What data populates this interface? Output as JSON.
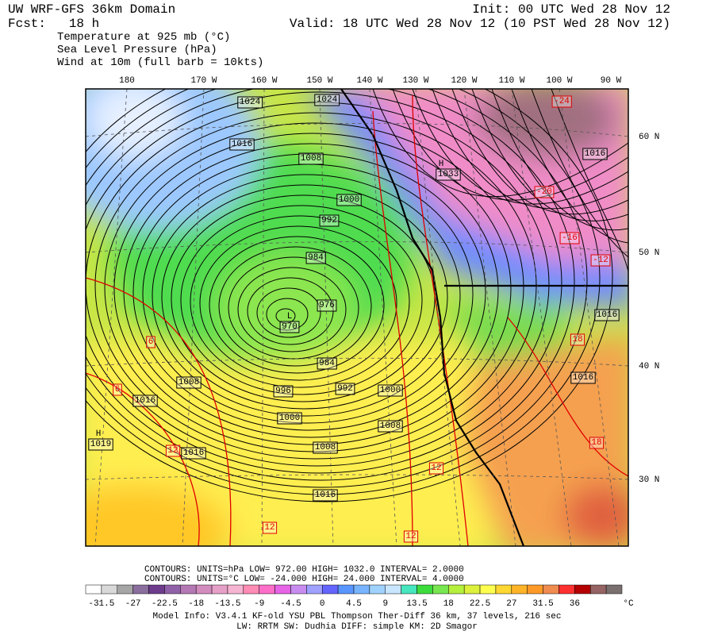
{
  "header": {
    "title": "UW WRF-GFS 36km Domain",
    "init": "Init: 00 UTC Wed 28 Nov 12",
    "fcst": "Fcst:   18 h",
    "valid": "Valid: 18 UTC Wed 28 Nov 12 (10 PST Wed 28 Nov 12)",
    "fields": [
      "Temperature at 925 mb (°C)",
      "Sea Level Pressure (hPa)",
      "Wind at 10m (full barb = 10kts)"
    ]
  },
  "longitude_labels": [
    "180",
    "170 W",
    "160 W",
    "150 W",
    "140 W",
    "130 W",
    "120 W",
    "110 W",
    "100 W",
    "90 W"
  ],
  "latitude_labels": [
    "60 N",
    "50 N",
    "40 N",
    "30 N"
  ],
  "pressure_labels": [
    "1024",
    "1024",
    "1016",
    "1008",
    "1000",
    "992",
    "984",
    "976",
    "970",
    "984",
    "992",
    "996",
    "1000",
    "1008",
    "1016",
    "1000",
    "1008",
    "1008",
    "1016",
    "1016",
    "1019",
    "1033",
    "1016",
    "1016",
    "1016"
  ],
  "centers": [
    "L",
    "H",
    "H"
  ],
  "temperature_labels": [
    "-20",
    "-24",
    "-16",
    "-12",
    "12",
    "12",
    "18",
    "12",
    "12",
    "6",
    "6",
    "18"
  ],
  "contour_info": [
    "CONTOURS:  UNITS=hPa  LOW=   972.00      HIGH=  1032.0      INTERVAL=   2.0000",
    "CONTOURS:  UNITS=°C  LOW= -24.000     HIGH=  24.000      INTERVAL=   4.0000"
  ],
  "colorbar": {
    "colors": [
      "#ffffff",
      "#d9d9d9",
      "#a6a6a6",
      "#8a6e9e",
      "#6e3c8c",
      "#9060a8",
      "#b478b4",
      "#d28cbe",
      "#e6a0c8",
      "#f5b4d2",
      "#ff8cb4",
      "#ff6ec8",
      "#e664e6",
      "#c88cf0",
      "#a0a0ff",
      "#6464ff",
      "#5a96ff",
      "#78b4ff",
      "#a0d2ff",
      "#c8e6ff",
      "#46e6be",
      "#3cdc3c",
      "#78e650",
      "#b4f03c",
      "#dcf03c",
      "#ffff50",
      "#ffd732",
      "#ffb428",
      "#ff9a28",
      "#f08c50",
      "#ff3030",
      "#b40000",
      "#966464",
      "#7a7070"
    ],
    "labels": [
      "-31.5",
      "-27",
      "-22.5",
      "-18",
      "-13.5",
      "-9",
      "-4.5",
      "0",
      "4.5",
      "9",
      "13.5",
      "18",
      "22.5",
      "27",
      "31.5",
      "36"
    ],
    "unit": "°C"
  },
  "model_info": [
    "Model Info: V3.4.1    KF-old  YSU PBL  Thompson    Ther-Diff 36 km,    37 levels,  216 sec",
    "LW: RRTM SW: Dudhia  DIFF: simple KM: 2D Smagor"
  ]
}
